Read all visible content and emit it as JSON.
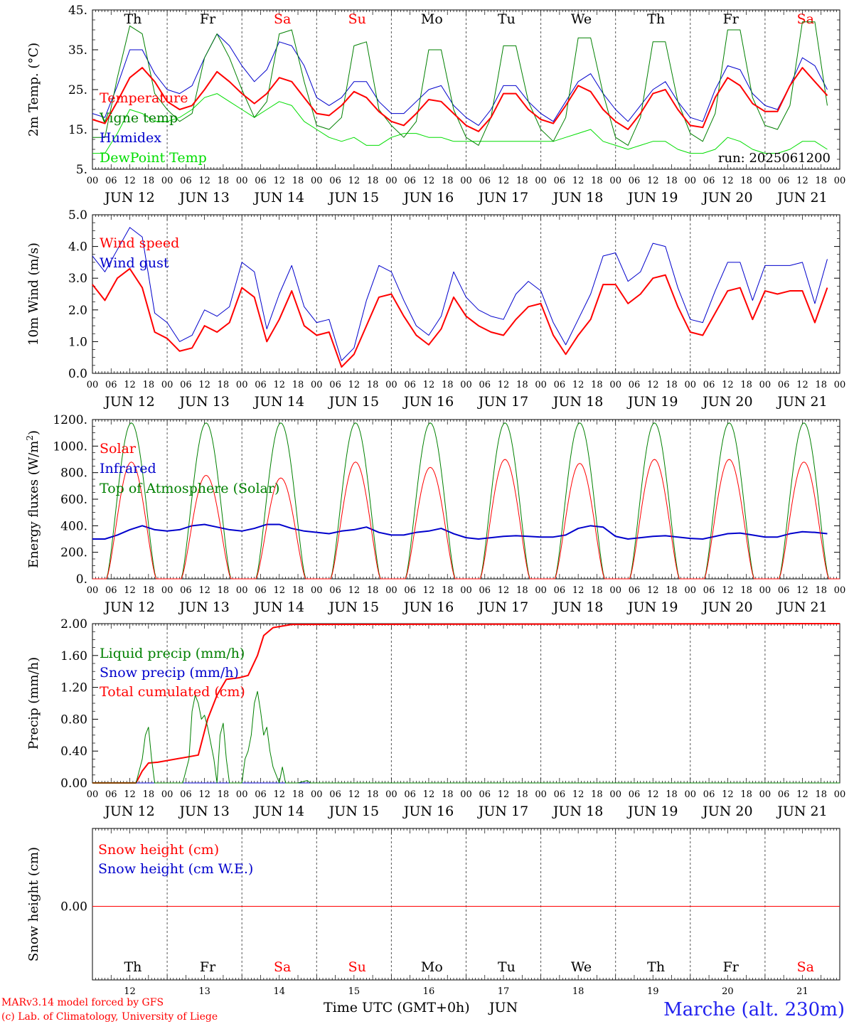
{
  "days": [
    "JUN 12",
    "JUN 13",
    "JUN 14",
    "JUN 15",
    "JUN 16",
    "JUN 17",
    "JUN 18",
    "JUN 19",
    "JUN 20",
    "JUN 21"
  ],
  "weekdays": [
    "Th",
    "Fr",
    "Sa",
    "Su",
    "Mo",
    "Tu",
    "We",
    "Th",
    "Fr",
    "Sa"
  ],
  "weekday_colors": [
    "#000000",
    "#000000",
    "#ff0000",
    "#ff0000",
    "#000000",
    "#000000",
    "#000000",
    "#000000",
    "#000000",
    "#ff0000"
  ],
  "hour_labels": [
    "00",
    "06",
    "12",
    "18"
  ],
  "last_hour_label": "00",
  "bottom_day_numbers": [
    "12",
    "13",
    "14",
    "15",
    "16",
    "17",
    "18",
    "19",
    "20",
    "21"
  ],
  "xlabel": "Time UTC (GMT+0h)",
  "month": "JUN",
  "footer_left_1": "MARv3.14 model forced by GFS",
  "footer_left_2": "(c) Lab. of Climatology, University of Liege",
  "location": "Marche (alt. 230m)",
  "run_label": "run: 2025061200",
  "colors": {
    "red": "#ff0000",
    "green": "#008000",
    "blue": "#0000cc",
    "lightgreen": "#00dd00"
  },
  "chart_data": [
    {
      "type": "line",
      "ylabel": "2m Temp. (°C)",
      "ylim": [
        5,
        45
      ],
      "yticks": [
        5,
        15,
        25,
        35,
        45
      ],
      "ytick_labels": [
        "5.",
        "15.",
        "25.",
        "35.",
        "45."
      ],
      "series": [
        {
          "name": "Temperature",
          "color": "#ff0000",
          "width": 2,
          "y": [
            17.5,
            16.5,
            22,
            28,
            30.5,
            27,
            22,
            20,
            21,
            25,
            29.5,
            27,
            24,
            21.5,
            24,
            28,
            27,
            23,
            19,
            18.5,
            21,
            24.5,
            23,
            19.5,
            17,
            16,
            19,
            22.5,
            22,
            19,
            16,
            14.5,
            18,
            24,
            24,
            20,
            17.5,
            16.5,
            21,
            26,
            24.5,
            20,
            17,
            15,
            19,
            24,
            25,
            20,
            16,
            15.5,
            23,
            28,
            26,
            21.5,
            19.5,
            19.5,
            26,
            30.5,
            27,
            23.5
          ]
        },
        {
          "name": "Vigne temp",
          "color": "#008000",
          "width": 1,
          "y": [
            13,
            13,
            28,
            41,
            39,
            24,
            20,
            17,
            19,
            33,
            39,
            33,
            25,
            18,
            22,
            39,
            40,
            27,
            16,
            15,
            18,
            36,
            37,
            20,
            16,
            13,
            17,
            35,
            35,
            20,
            13,
            11,
            18,
            36,
            36,
            22,
            15,
            12,
            18,
            38,
            38,
            24,
            13,
            11,
            18,
            37,
            37,
            22,
            14,
            12,
            19,
            40,
            40,
            23,
            16,
            15,
            21,
            42,
            42,
            21
          ]
        },
        {
          "name": "Humidex",
          "color": "#0000cc",
          "width": 1,
          "y": [
            19,
            18,
            26,
            35,
            35,
            29,
            25,
            24,
            26,
            33,
            39,
            36,
            31,
            27,
            30,
            37,
            36,
            31,
            23,
            21,
            23,
            27,
            27,
            22,
            19,
            19,
            22,
            25,
            26,
            21,
            18,
            16,
            20,
            26,
            26,
            22,
            19,
            17,
            22,
            27,
            29,
            24,
            20,
            17,
            21,
            25,
            27,
            22,
            18,
            17,
            25,
            31,
            30,
            24,
            21,
            20,
            26,
            33,
            31,
            25
          ]
        },
        {
          "name": "DewPoint Temp",
          "color": "#00dd00",
          "width": 1,
          "y": [
            9,
            9,
            14,
            20,
            19,
            17,
            17,
            18,
            20,
            23,
            24,
            22,
            20,
            18,
            20,
            22,
            21,
            17,
            15,
            13,
            12,
            13,
            11,
            11,
            13,
            14,
            14,
            13,
            13,
            12,
            12,
            12,
            12,
            12,
            12,
            12,
            12,
            12,
            13,
            14,
            15,
            12,
            11,
            10,
            11,
            12,
            12,
            10,
            9,
            9,
            10,
            13,
            12,
            10,
            9,
            9,
            10,
            12,
            12,
            10
          ]
        }
      ]
    },
    {
      "type": "line",
      "ylabel": "10m Wind (m/s)",
      "ylim": [
        0,
        5
      ],
      "yticks": [
        0,
        1,
        2,
        3,
        4,
        5
      ],
      "ytick_labels": [
        "0.0",
        "1.0",
        "2.0",
        "3.0",
        "4.0",
        "5.0"
      ],
      "series": [
        {
          "name": "Wind speed",
          "color": "#ff0000",
          "width": 2,
          "y": [
            2.8,
            2.3,
            3.0,
            3.3,
            2.7,
            1.3,
            1.1,
            0.7,
            0.8,
            1.5,
            1.3,
            1.6,
            2.7,
            2.4,
            1.0,
            1.7,
            2.6,
            1.5,
            1.2,
            1.3,
            0.2,
            0.6,
            1.5,
            2.4,
            2.5,
            1.8,
            1.2,
            0.9,
            1.4,
            2.4,
            1.8,
            1.5,
            1.3,
            1.2,
            1.7,
            2.1,
            2.2,
            1.2,
            0.6,
            1.2,
            1.7,
            2.8,
            2.8,
            2.2,
            2.5,
            3.0,
            3.1,
            2.1,
            1.3,
            1.2,
            1.9,
            2.6,
            2.7,
            1.7,
            2.6,
            2.5,
            2.6,
            2.6,
            1.6,
            2.7
          ]
        },
        {
          "name": "Wind gust",
          "color": "#0000cc",
          "width": 1,
          "y": [
            3.7,
            3.2,
            3.9,
            4.6,
            4.3,
            1.9,
            1.6,
            1.0,
            1.2,
            2.0,
            1.8,
            2.1,
            3.5,
            3.2,
            1.4,
            2.5,
            3.4,
            2.1,
            1.6,
            1.7,
            0.4,
            0.8,
            2.3,
            3.4,
            3.2,
            2.3,
            1.5,
            1.2,
            1.8,
            3.2,
            2.4,
            2.0,
            1.8,
            1.7,
            2.5,
            2.9,
            2.6,
            1.6,
            0.9,
            1.7,
            2.5,
            3.7,
            3.8,
            2.9,
            3.2,
            4.1,
            4.0,
            2.7,
            1.7,
            1.6,
            2.6,
            3.5,
            3.5,
            2.3,
            3.4,
            3.4,
            3.4,
            3.5,
            2.2,
            3.6
          ]
        }
      ]
    },
    {
      "type": "line",
      "ylabel": "Energy fluxes (W/m²)",
      "ylim": [
        0,
        1200
      ],
      "yticks": [
        0,
        200,
        400,
        600,
        800,
        1000,
        1200
      ],
      "ytick_labels": [
        "0.",
        "200.",
        "400.",
        "600.",
        "800.",
        "1000.",
        "1200."
      ],
      "series": [
        {
          "name": "Solar",
          "color": "#ff0000",
          "width": 1,
          "peaks": [
            880,
            780,
            760,
            880,
            840,
            900,
            870,
            900,
            900,
            880
          ]
        },
        {
          "name": "Infrared",
          "color": "#0000cc",
          "width": 2,
          "y": [
            300,
            300,
            330,
            370,
            400,
            370,
            360,
            370,
            400,
            410,
            390,
            370,
            360,
            380,
            410,
            410,
            380,
            360,
            350,
            340,
            360,
            370,
            390,
            350,
            330,
            330,
            350,
            360,
            380,
            340,
            310,
            300,
            310,
            320,
            325,
            320,
            315,
            315,
            330,
            380,
            400,
            390,
            320,
            300,
            310,
            320,
            325,
            315,
            305,
            300,
            320,
            340,
            345,
            330,
            315,
            315,
            340,
            355,
            350,
            340
          ]
        },
        {
          "name": "Top of Atmosphere (Solar)",
          "color": "#008000",
          "width": 1,
          "peaks": [
            1175,
            1175,
            1175,
            1175,
            1175,
            1175,
            1175,
            1175,
            1175,
            1175
          ]
        }
      ]
    },
    {
      "type": "line",
      "ylabel": "Precip (mm/h)",
      "ylim": [
        0,
        2
      ],
      "yticks": [
        0,
        0.4,
        0.8,
        1.2,
        1.6,
        2.0
      ],
      "ytick_labels": [
        "0.00",
        "0.40",
        "0.80",
        "1.20",
        "1.60",
        "2.00"
      ],
      "series": [
        {
          "name": "Liquid precip (mm/h)",
          "color": "#008000",
          "width": 1,
          "points": [
            [
              0,
              0
            ],
            [
              14,
              0
            ],
            [
              16,
              0.3
            ],
            [
              17,
              0.6
            ],
            [
              18,
              0.7
            ],
            [
              19,
              0.3
            ],
            [
              20,
              0
            ],
            [
              29,
              0
            ],
            [
              30,
              0.15
            ],
            [
              31,
              0.3
            ],
            [
              32,
              0.9
            ],
            [
              33,
              1.1
            ],
            [
              34,
              1.0
            ],
            [
              35,
              0.8
            ],
            [
              36,
              0.85
            ],
            [
              37,
              0.7
            ],
            [
              38,
              0.5
            ],
            [
              39,
              0.3
            ],
            [
              40,
              0
            ],
            [
              41,
              0.6
            ],
            [
              42,
              0.75
            ],
            [
              43,
              0.3
            ],
            [
              44,
              0
            ],
            [
              48,
              0
            ],
            [
              49,
              0.3
            ],
            [
              50,
              0.4
            ],
            [
              51,
              0.6
            ],
            [
              52,
              1.0
            ],
            [
              53,
              1.15
            ],
            [
              54,
              0.9
            ],
            [
              55,
              0.6
            ],
            [
              56,
              0.7
            ],
            [
              57,
              0.4
            ],
            [
              58,
              0.2
            ],
            [
              59,
              0.1
            ],
            [
              60,
              0
            ],
            [
              61,
              0.2
            ],
            [
              62,
              0
            ],
            [
              66,
              0
            ],
            [
              69,
              0.03
            ],
            [
              70,
              0
            ],
            [
              240,
              0
            ]
          ]
        },
        {
          "name": "Snow precip (mm/h)",
          "color": "#0000cc",
          "width": 1,
          "points": [
            [
              0,
              0
            ],
            [
              240,
              0
            ]
          ]
        },
        {
          "name": "Total cumulated (cm)",
          "color": "#ff0000",
          "width": 2,
          "points": [
            [
              0,
              0
            ],
            [
              14,
              0
            ],
            [
              16,
              0.15
            ],
            [
              18,
              0.25
            ],
            [
              21,
              0.26
            ],
            [
              34,
              0.35
            ],
            [
              37,
              0.8
            ],
            [
              40,
              1.1
            ],
            [
              43,
              1.3
            ],
            [
              47,
              1.32
            ],
            [
              50,
              1.35
            ],
            [
              53,
              1.6
            ],
            [
              55,
              1.85
            ],
            [
              58,
              1.95
            ],
            [
              64,
              1.99
            ],
            [
              240,
              2.0
            ]
          ]
        }
      ]
    },
    {
      "type": "line",
      "ylabel": "Snow height (cm)",
      "yticks": [
        0
      ],
      "ytick_labels": [
        "0.00"
      ],
      "series": [
        {
          "name": "Snow height (cm)",
          "color": "#ff0000",
          "width": 1,
          "points": [
            [
              0,
              0
            ],
            [
              240,
              0
            ]
          ]
        },
        {
          "name": "Snow height (cm W.E.)",
          "color": "#0000cc",
          "width": 1,
          "points": []
        }
      ]
    }
  ]
}
